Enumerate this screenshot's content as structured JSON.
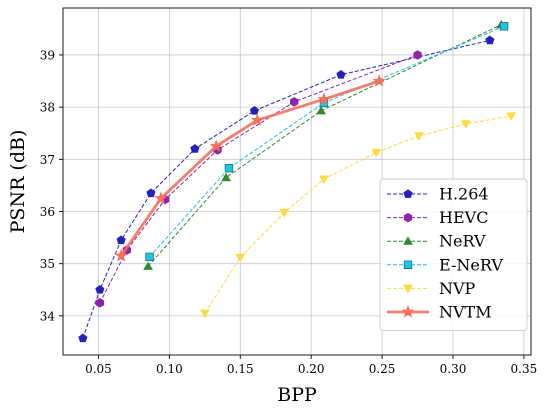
{
  "chart_data": {
    "type": "line",
    "title": "",
    "xlabel": "BPP",
    "ylabel": "PSNR (dB)",
    "xlim": [
      0.025,
      0.355
    ],
    "ylim": [
      33.25,
      39.9
    ],
    "xticks": [
      0.05,
      0.1,
      0.15,
      0.2,
      0.25,
      0.3,
      0.35
    ],
    "xtick_labels": [
      "0.05",
      "0.10",
      "0.15",
      "0.20",
      "0.25",
      "0.30",
      "0.35"
    ],
    "yticks": [
      34,
      35,
      36,
      37,
      38,
      39
    ],
    "ytick_labels": [
      "34",
      "35",
      "36",
      "37",
      "38",
      "39"
    ],
    "grid": true,
    "legend_position": "bottom-right",
    "series": [
      {
        "name": "H.264",
        "color": "#2222bb",
        "marker": "pentagon",
        "line": "dashed",
        "x": [
          0.039,
          0.051,
          0.066,
          0.087,
          0.118,
          0.16,
          0.221,
          0.326
        ],
        "y": [
          33.57,
          34.5,
          35.45,
          36.35,
          37.2,
          37.93,
          38.62,
          39.28
        ]
      },
      {
        "name": "HEVC",
        "color": "#8e24aa",
        "marker": "hexagon",
        "line": "dashed",
        "x": [
          0.051,
          0.07,
          0.097,
          0.134,
          0.188,
          0.275
        ],
        "y": [
          34.25,
          35.26,
          36.23,
          37.18,
          38.1,
          39.0
        ]
      },
      {
        "name": "NeRV",
        "color": "#2e8b2e",
        "marker": "triangle-up",
        "line": "dashed",
        "x": [
          0.085,
          0.14,
          0.207,
          0.334
        ],
        "y": [
          34.95,
          36.65,
          37.93,
          39.58
        ]
      },
      {
        "name": "E-NeRV",
        "color": "#22c4dd",
        "marker": "square",
        "line": "dashed",
        "x": [
          0.086,
          0.142,
          0.209,
          0.336
        ],
        "y": [
          35.13,
          36.83,
          38.08,
          39.55
        ]
      },
      {
        "name": "NVP",
        "color": "#ffd93d",
        "marker": "triangle-down",
        "line": "dashed",
        "x": [
          0.125,
          0.15,
          0.181,
          0.209,
          0.246,
          0.276,
          0.309,
          0.341
        ],
        "y": [
          34.05,
          35.12,
          35.98,
          36.62,
          37.13,
          37.45,
          37.68,
          37.83
        ]
      },
      {
        "name": "NVTM",
        "color": "#f86f5e",
        "marker": "star",
        "line": "solid",
        "x": [
          0.066,
          0.094,
          0.133,
          0.162,
          0.209,
          0.248
        ],
        "y": [
          35.15,
          36.25,
          37.25,
          37.75,
          38.15,
          38.5
        ]
      }
    ]
  }
}
